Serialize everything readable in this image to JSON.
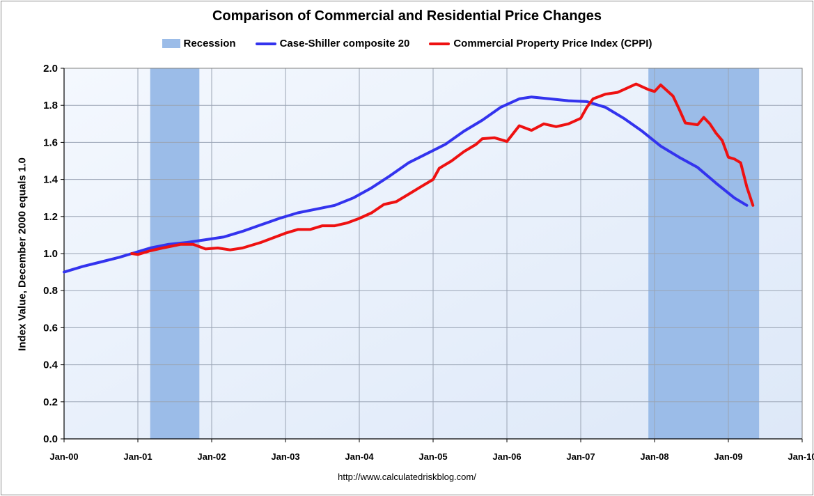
{
  "colors": {
    "recession": "#9bbce8",
    "case_shiller": "#3333ee",
    "cppi": "#ee1111",
    "plot_bg": "#e8f0fb",
    "grid": "#9aa4b4"
  },
  "footer": {
    "source_url": "http://www.calculatedriskblog.com/"
  },
  "chart_data": {
    "type": "line",
    "title": "Comparison of Commercial and Residential Price Changes",
    "ylabel": "Index Value, December 2000 equals 1.0",
    "xlabel": "",
    "ylim": [
      0,
      2.0
    ],
    "yticks": [
      "0.0",
      "0.2",
      "0.4",
      "0.6",
      "0.8",
      "1.0",
      "1.2",
      "1.4",
      "1.6",
      "1.8",
      "2.0"
    ],
    "xlim": [
      "2000-01",
      "2010-01"
    ],
    "xticks": [
      {
        "label": "Jan-00",
        "date": "2000-01"
      },
      {
        "label": "Jan-01",
        "date": "2001-01"
      },
      {
        "label": "Jan-02",
        "date": "2002-01"
      },
      {
        "label": "Jan-03",
        "date": "2003-01"
      },
      {
        "label": "Jan-04",
        "date": "2004-01"
      },
      {
        "label": "Jan-05",
        "date": "2005-01"
      },
      {
        "label": "Jan-06",
        "date": "2006-01"
      },
      {
        "label": "Jan-07",
        "date": "2007-01"
      },
      {
        "label": "Jan-08",
        "date": "2008-01"
      },
      {
        "label": "Jan-09",
        "date": "2009-01"
      },
      {
        "label": "Jan-10",
        "date": "2010-01"
      }
    ],
    "grid": true,
    "legend_position": "top",
    "recession_shading": {
      "name": "Recession",
      "periods": [
        {
          "start": "2001-03",
          "end": "2001-11"
        },
        {
          "start": "2007-12",
          "end": "2009-06"
        }
      ]
    },
    "series": [
      {
        "name": "Case-Shiller composite 20",
        "points": [
          [
            "2000-01",
            0.9
          ],
          [
            "2000-04",
            0.93
          ],
          [
            "2000-07",
            0.955
          ],
          [
            "2000-10",
            0.98
          ],
          [
            "2000-12",
            1.0
          ],
          [
            "2001-03",
            1.03
          ],
          [
            "2001-06",
            1.05
          ],
          [
            "2001-09",
            1.06
          ],
          [
            "2001-12",
            1.075
          ],
          [
            "2002-03",
            1.09
          ],
          [
            "2002-06",
            1.12
          ],
          [
            "2002-09",
            1.155
          ],
          [
            "2002-12",
            1.19
          ],
          [
            "2003-03",
            1.22
          ],
          [
            "2003-06",
            1.24
          ],
          [
            "2003-09",
            1.26
          ],
          [
            "2003-12",
            1.3
          ],
          [
            "2004-03",
            1.355
          ],
          [
            "2004-06",
            1.42
          ],
          [
            "2004-09",
            1.49
          ],
          [
            "2004-12",
            1.54
          ],
          [
            "2005-03",
            1.59
          ],
          [
            "2005-06",
            1.66
          ],
          [
            "2005-09",
            1.72
          ],
          [
            "2005-12",
            1.79
          ],
          [
            "2006-03",
            1.835
          ],
          [
            "2006-05",
            1.845
          ],
          [
            "2006-08",
            1.835
          ],
          [
            "2006-11",
            1.825
          ],
          [
            "2007-02",
            1.82
          ],
          [
            "2007-05",
            1.79
          ],
          [
            "2007-08",
            1.73
          ],
          [
            "2007-11",
            1.66
          ],
          [
            "2008-02",
            1.58
          ],
          [
            "2008-05",
            1.52
          ],
          [
            "2008-08",
            1.465
          ],
          [
            "2008-11",
            1.38
          ],
          [
            "2009-02",
            1.3
          ],
          [
            "2009-04",
            1.26
          ]
        ]
      },
      {
        "name": "Commercial Property Price Index (CPPI)",
        "points": [
          [
            "2000-12",
            1.0
          ],
          [
            "2001-01",
            0.995
          ],
          [
            "2001-03",
            1.015
          ],
          [
            "2001-05",
            1.03
          ],
          [
            "2001-08",
            1.05
          ],
          [
            "2001-10",
            1.05
          ],
          [
            "2001-12",
            1.025
          ],
          [
            "2002-02",
            1.03
          ],
          [
            "2002-04",
            1.02
          ],
          [
            "2002-06",
            1.03
          ],
          [
            "2002-09",
            1.06
          ],
          [
            "2002-11",
            1.085
          ],
          [
            "2003-01",
            1.11
          ],
          [
            "2003-03",
            1.13
          ],
          [
            "2003-05",
            1.13
          ],
          [
            "2003-07",
            1.15
          ],
          [
            "2003-09",
            1.15
          ],
          [
            "2003-11",
            1.165
          ],
          [
            "2004-01",
            1.19
          ],
          [
            "2004-03",
            1.22
          ],
          [
            "2004-05",
            1.265
          ],
          [
            "2004-07",
            1.28
          ],
          [
            "2004-09",
            1.32
          ],
          [
            "2004-11",
            1.36
          ],
          [
            "2005-01",
            1.4
          ],
          [
            "2005-02",
            1.46
          ],
          [
            "2005-04",
            1.5
          ],
          [
            "2005-06",
            1.55
          ],
          [
            "2005-08",
            1.59
          ],
          [
            "2005-09",
            1.62
          ],
          [
            "2005-11",
            1.625
          ],
          [
            "2006-01",
            1.605
          ],
          [
            "2006-03",
            1.69
          ],
          [
            "2006-05",
            1.665
          ],
          [
            "2006-07",
            1.7
          ],
          [
            "2006-09",
            1.685
          ],
          [
            "2006-11",
            1.7
          ],
          [
            "2007-01",
            1.73
          ],
          [
            "2007-02",
            1.79
          ],
          [
            "2007-03",
            1.835
          ],
          [
            "2007-05",
            1.86
          ],
          [
            "2007-07",
            1.87
          ],
          [
            "2007-09",
            1.9
          ],
          [
            "2007-10",
            1.915
          ],
          [
            "2007-12",
            1.885
          ],
          [
            "2008-01",
            1.875
          ],
          [
            "2008-02",
            1.91
          ],
          [
            "2008-04",
            1.85
          ],
          [
            "2008-05",
            1.78
          ],
          [
            "2008-06",
            1.705
          ],
          [
            "2008-08",
            1.695
          ],
          [
            "2008-09",
            1.735
          ],
          [
            "2008-10",
            1.7
          ],
          [
            "2008-11",
            1.65
          ],
          [
            "2008-12",
            1.61
          ],
          [
            "2009-01",
            1.52
          ],
          [
            "2009-02",
            1.51
          ],
          [
            "2009-03",
            1.49
          ],
          [
            "2009-04",
            1.36
          ],
          [
            "2009-05",
            1.26
          ]
        ]
      }
    ]
  }
}
